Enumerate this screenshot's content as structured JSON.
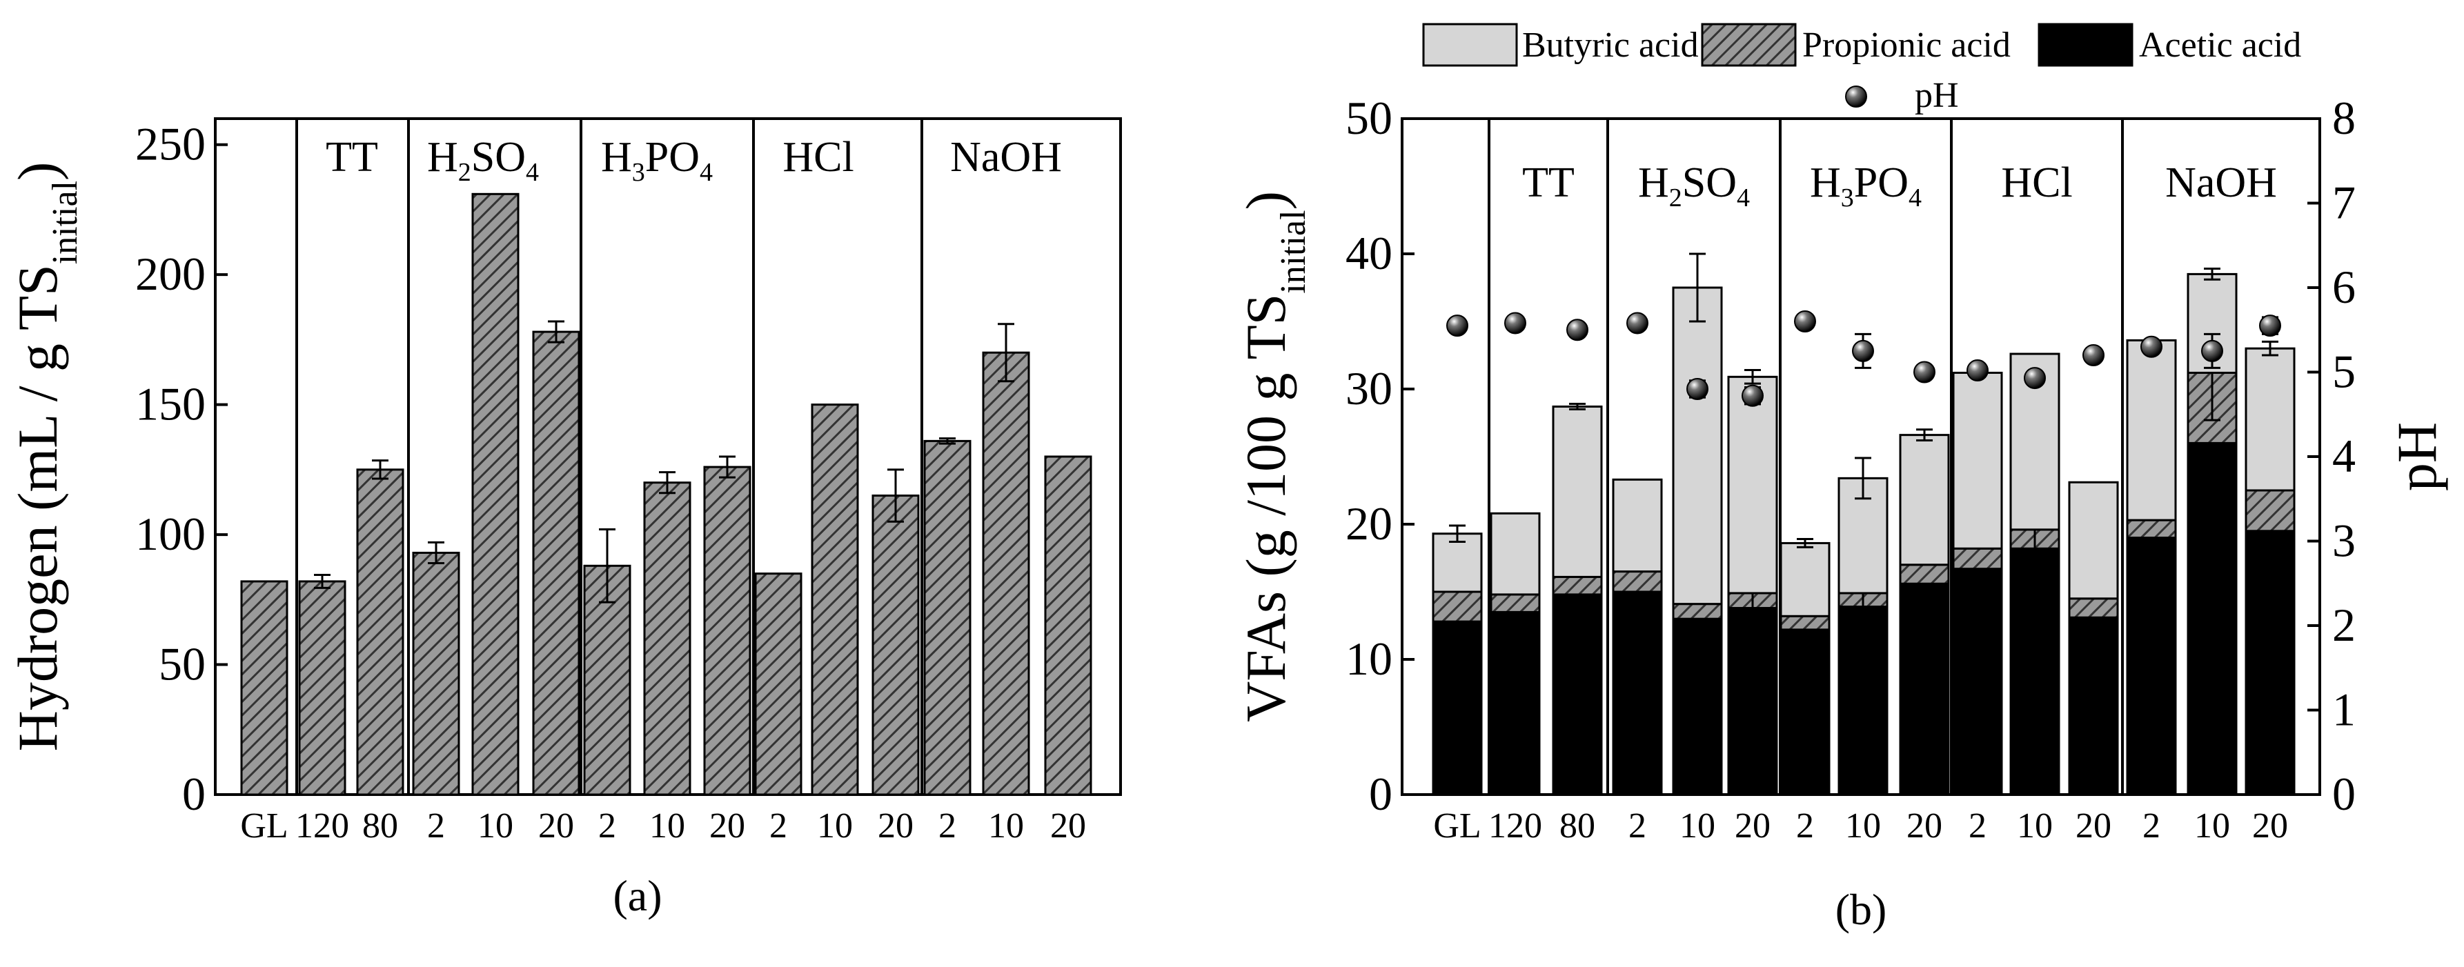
{
  "chart_data": [
    {
      "type": "bar",
      "panel_label": "(a)",
      "title": "",
      "xlabel": "",
      "ylabel": "Hydrogen (mL / g TS",
      "ylabel_sub": "initial",
      "ylabel_close": ")",
      "ylim": [
        0,
        260
      ],
      "yticks": [
        0,
        50,
        100,
        150,
        200,
        250
      ],
      "groups": [
        {
          "name": "",
          "sub": "",
          "tail": ""
        },
        {
          "name": "TT",
          "sub": "",
          "tail": ""
        },
        {
          "name": "H",
          "sub": "2",
          "tail": "SO",
          "sub2": "4"
        },
        {
          "name": "H",
          "sub": "3",
          "tail": "PO",
          "sub2": "4"
        },
        {
          "name": "HCl",
          "sub": "",
          "tail": ""
        },
        {
          "name": "NaOH",
          "sub": "",
          "tail": ""
        }
      ],
      "categories": [
        "GL",
        "120",
        "80",
        "2",
        "10",
        "20",
        "2",
        "10",
        "20",
        "2",
        "10",
        "20",
        "2",
        "10",
        "20"
      ],
      "values": [
        82,
        82,
        125,
        93,
        231,
        178,
        88,
        120,
        126,
        85,
        150,
        115,
        136,
        170,
        130
      ],
      "errors": [
        0,
        2.5,
        3.5,
        4,
        0,
        4,
        14,
        4,
        4,
        0,
        0,
        10,
        1,
        11,
        0
      ]
    },
    {
      "type": "stacked-bar",
      "panel_label": "(b)",
      "title": "",
      "xlabel": "",
      "ylabel": "VFAs (g /100 g TS",
      "ylabel_sub": "initial",
      "ylabel_close": ")",
      "y2label": "pH",
      "ylim": [
        0,
        50
      ],
      "yticks": [
        0,
        10,
        20,
        30,
        40,
        50
      ],
      "y2lim": [
        0,
        8
      ],
      "y2ticks": [
        0,
        1,
        2,
        3,
        4,
        5,
        6,
        7,
        8
      ],
      "legend": {
        "butyric": "Butyric acid",
        "propionic": "Propionic acid",
        "acetic": "Acetic acid",
        "ph": "pH"
      },
      "groups": [
        {
          "name": "",
          "sub": "",
          "tail": ""
        },
        {
          "name": "TT",
          "sub": "",
          "tail": ""
        },
        {
          "name": "H",
          "sub": "2",
          "tail": "SO",
          "sub2": "4"
        },
        {
          "name": "H",
          "sub": "3",
          "tail": "PO",
          "sub2": "4"
        },
        {
          "name": "HCl",
          "sub": "",
          "tail": ""
        },
        {
          "name": "NaOH",
          "sub": "",
          "tail": ""
        }
      ],
      "categories": [
        "GL",
        "120",
        "80",
        "2",
        "10",
        "20",
        "2",
        "10",
        "20",
        "2",
        "10",
        "20",
        "2",
        "10",
        "20"
      ],
      "series": [
        {
          "name": "Acetic acid",
          "values": [
            12.8,
            13.5,
            14.8,
            15.0,
            13.0,
            13.8,
            12.2,
            13.9,
            15.6,
            16.7,
            18.2,
            13.1,
            19.0,
            26.0,
            19.5
          ],
          "errors": [
            0.3,
            0.3,
            1.5,
            0,
            0.3,
            0.5,
            0,
            5.3,
            4.2,
            2.0,
            2.0,
            0.3,
            0,
            1.5,
            0
          ]
        },
        {
          "name": "Propionic acid",
          "values": [
            2.2,
            1.3,
            1.3,
            1.5,
            1.1,
            1.1,
            1.0,
            1.0,
            1.4,
            1.5,
            1.4,
            1.4,
            1.3,
            5.2,
            3.0
          ],
          "errors": [
            0,
            0,
            0,
            0,
            0,
            1.4,
            0,
            4.0,
            0,
            0,
            2.5,
            0,
            0,
            3.5,
            0
          ]
        },
        {
          "name": "Butyric acid",
          "values": [
            4.3,
            6.0,
            12.6,
            6.8,
            23.4,
            16.0,
            5.4,
            8.5,
            9.6,
            13.0,
            13.0,
            8.6,
            13.3,
            7.3,
            10.5
          ],
          "errors": [
            0.6,
            0,
            0.2,
            0,
            2.5,
            0.5,
            0.3,
            1.5,
            0.4,
            0.3,
            0,
            0,
            0,
            0.4,
            0.5
          ]
        }
      ],
      "ph": [
        5.55,
        5.58,
        5.5,
        5.58,
        4.8,
        4.72,
        5.6,
        5.25,
        5.0,
        5.02,
        4.93,
        5.2,
        5.3,
        5.25,
        5.55
      ],
      "ph_errors": [
        0,
        0,
        0.05,
        0,
        0.1,
        0.1,
        0,
        0.2,
        0,
        0.05,
        0,
        0,
        0,
        0.2,
        0.1
      ]
    }
  ],
  "colors": {
    "gray_fill": "#d6d6d6",
    "acetic_fill": "#000000",
    "axis": "#000000"
  }
}
